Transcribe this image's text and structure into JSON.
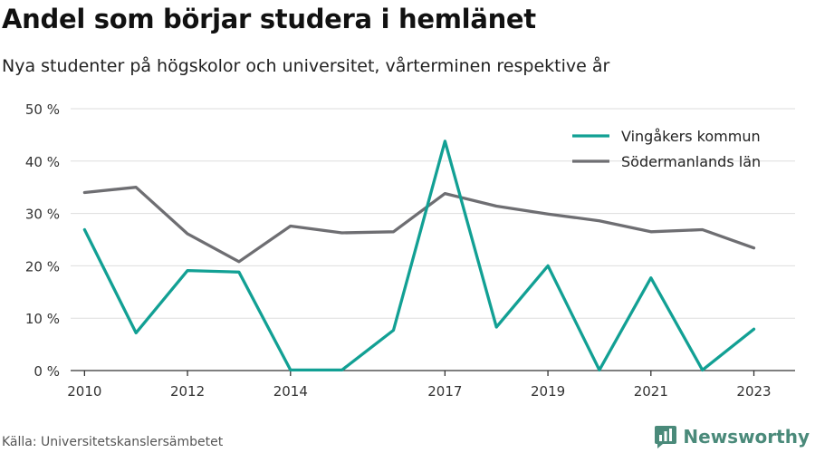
{
  "title": "Andel som börjar studera i hemlänet",
  "subtitle": "Nya studenter på högskolor och universitet, vårterminen respektive år",
  "source": "Källa: Universitetskanslersämbetet",
  "brand": "Newsworthy",
  "chart_data": {
    "type": "line",
    "x": [
      2010,
      2011,
      2012,
      2013,
      2014,
      2015,
      2016,
      2017,
      2018,
      2019,
      2020,
      2021,
      2022,
      2023
    ],
    "x_ticks": [
      2010,
      2012,
      2014,
      2017,
      2019,
      2021,
      2023
    ],
    "y_ticks": [
      "0 %",
      "10 %",
      "20 %",
      "30 %",
      "40 %",
      "50 %"
    ],
    "ylim": [
      0,
      50
    ],
    "grid": true,
    "legend_position": "top-right",
    "series": [
      {
        "name": "Vingåkers kommun",
        "color": "#12a094",
        "values": [
          26.9,
          7.2,
          19.1,
          18.8,
          0.1,
          0.1,
          7.7,
          43.8,
          8.3,
          20.0,
          0.1,
          17.7,
          0.1,
          7.9
        ]
      },
      {
        "name": "Södermanlands län",
        "color": "#6e6e72",
        "values": [
          34.0,
          35.0,
          26.1,
          20.8,
          27.6,
          26.3,
          26.5,
          33.8,
          31.4,
          29.9,
          28.6,
          26.5,
          26.9,
          23.4
        ]
      }
    ]
  }
}
